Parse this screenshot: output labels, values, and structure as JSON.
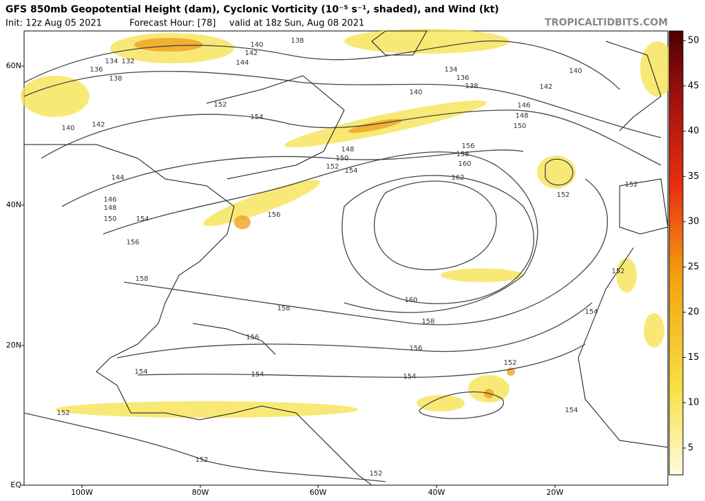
{
  "header": {
    "title": "GFS 850mb Geopotential Height (dam), Cyclonic Vorticity (10⁻⁵ s⁻¹, shaded), and Wind (kt)",
    "init": "Init: 12z Aug 05 2021",
    "forecast_hour": "Forecast Hour: [78]",
    "valid": "valid at 18z Sun, Aug 08 2021",
    "watermark": "TROPICALTIDBITS.COM"
  },
  "latitude_labels": [
    "60N",
    "40N",
    "20N",
    "EQ"
  ],
  "longitude_labels": [
    "100W",
    "80W",
    "60W",
    "40W",
    "20W"
  ],
  "colorbar": {
    "ticks": [
      50,
      45,
      40,
      35,
      30,
      25,
      20,
      15,
      10,
      5
    ]
  },
  "contour_labels": [
    "140",
    "142",
    "144",
    "138",
    "136",
    "134",
    "132",
    "138",
    "140",
    "142",
    "152",
    "154",
    "134",
    "136",
    "138",
    "140",
    "140",
    "142",
    "146",
    "148",
    "150",
    "156",
    "158",
    "160",
    "162",
    "152",
    "148",
    "150",
    "152",
    "154",
    "144",
    "146",
    "148",
    "150",
    "154",
    "156",
    "156",
    "158",
    "158",
    "160",
    "158",
    "156",
    "156",
    "154",
    "154",
    "154",
    "152",
    "152",
    "154",
    "152",
    "152",
    "152",
    "154",
    "152"
  ]
}
